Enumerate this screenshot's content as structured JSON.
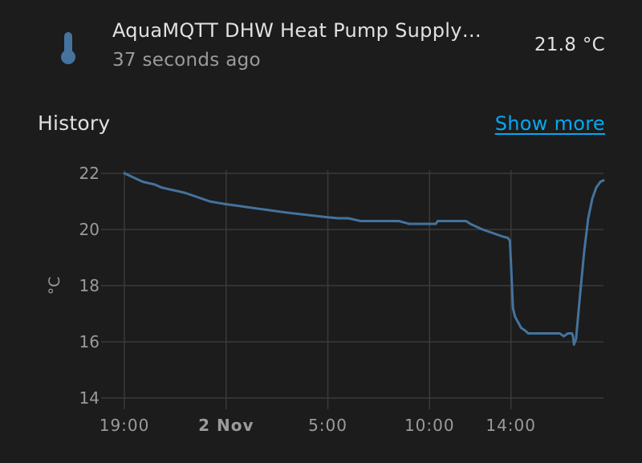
{
  "entity": {
    "icon": "thermometer-icon",
    "name": "AquaMQTT DHW Heat Pump Supply…",
    "last_changed": "37 seconds ago",
    "value": "21.8 °C",
    "icon_color": "#44739e"
  },
  "history": {
    "title": "History",
    "show_more_label": "Show more"
  },
  "chart_data": {
    "type": "line",
    "title": "",
    "xlabel": "",
    "ylabel": "°C",
    "ylim": [
      14,
      22
    ],
    "y_ticks": [
      "22",
      "20",
      "18",
      "16",
      "14"
    ],
    "x_range": [
      -0.2,
      23.55
    ],
    "x_ticks": [
      {
        "x": 0,
        "label": "19:00",
        "bold": false
      },
      {
        "x": 5,
        "label": "2 Nov",
        "bold": true
      },
      {
        "x": 10,
        "label": "5:00",
        "bold": false
      },
      {
        "x": 15,
        "label": "10:00",
        "bold": false
      },
      {
        "x": 19,
        "label": "14:00",
        "bold": false
      }
    ],
    "grid": true,
    "line_color": "#44739e",
    "series": [
      {
        "name": "",
        "points": [
          [
            0,
            22.0
          ],
          [
            0.3,
            21.9
          ],
          [
            0.6,
            21.8
          ],
          [
            0.9,
            21.7
          ],
          [
            1.2,
            21.65
          ],
          [
            1.5,
            21.6
          ],
          [
            1.8,
            21.5
          ],
          [
            2.1,
            21.45
          ],
          [
            2.4,
            21.4
          ],
          [
            2.7,
            21.35
          ],
          [
            3.0,
            21.3
          ],
          [
            3.4,
            21.2
          ],
          [
            3.8,
            21.1
          ],
          [
            4.2,
            21.0
          ],
          [
            4.6,
            20.95
          ],
          [
            5.0,
            20.9
          ],
          [
            5.5,
            20.85
          ],
          [
            6.0,
            20.8
          ],
          [
            6.5,
            20.75
          ],
          [
            7.0,
            20.7
          ],
          [
            7.5,
            20.65
          ],
          [
            8.0,
            20.6
          ],
          [
            8.6,
            20.55
          ],
          [
            9.2,
            20.5
          ],
          [
            9.8,
            20.45
          ],
          [
            10.5,
            20.4
          ],
          [
            11.0,
            20.4
          ],
          [
            11.3,
            20.35
          ],
          [
            11.6,
            20.3
          ],
          [
            12.5,
            20.3
          ],
          [
            13.5,
            20.3
          ],
          [
            14.0,
            20.2
          ],
          [
            14.8,
            20.2
          ],
          [
            15.3,
            20.2
          ],
          [
            15.4,
            20.3
          ],
          [
            16.0,
            20.3
          ],
          [
            16.8,
            20.3
          ],
          [
            17.0,
            20.2
          ],
          [
            17.3,
            20.1
          ],
          [
            17.6,
            20.0
          ],
          [
            18.0,
            19.9
          ],
          [
            18.4,
            19.8
          ],
          [
            18.6,
            19.75
          ],
          [
            18.85,
            19.7
          ],
          [
            18.95,
            19.6
          ],
          [
            19.02,
            18.5
          ],
          [
            19.1,
            17.2
          ],
          [
            19.2,
            16.9
          ],
          [
            19.35,
            16.7
          ],
          [
            19.5,
            16.5
          ],
          [
            19.7,
            16.4
          ],
          [
            19.85,
            16.3
          ],
          [
            20.2,
            16.3
          ],
          [
            20.8,
            16.3
          ],
          [
            21.4,
            16.3
          ],
          [
            21.6,
            16.2
          ],
          [
            21.8,
            16.3
          ],
          [
            22.0,
            16.3
          ],
          [
            22.05,
            16.2
          ],
          [
            22.1,
            15.9
          ],
          [
            22.2,
            16.1
          ],
          [
            22.4,
            17.7
          ],
          [
            22.6,
            19.2
          ],
          [
            22.8,
            20.4
          ],
          [
            23.0,
            21.1
          ],
          [
            23.2,
            21.5
          ],
          [
            23.4,
            21.7
          ],
          [
            23.55,
            21.75
          ]
        ]
      }
    ]
  }
}
